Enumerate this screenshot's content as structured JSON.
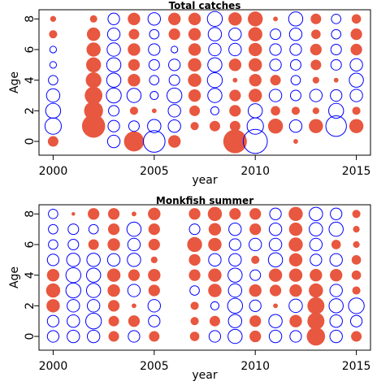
{
  "colors": {
    "positive": "#E8573F",
    "negative": "#0000FF",
    "axis": "#000000"
  },
  "chart_data": [
    {
      "type": "bubble",
      "title": "Total catches",
      "xlabel": "year",
      "ylabel": "Age",
      "xlim": [
        1999.3,
        2015.7
      ],
      "ylim": [
        -0.9,
        8.6
      ],
      "xticks": [
        2000,
        2005,
        2010,
        2015
      ],
      "yticks": [
        0,
        2,
        4,
        6,
        8
      ],
      "years": [
        2000,
        2001,
        2002,
        2003,
        2004,
        2005,
        2006,
        2007,
        2008,
        2009,
        2010,
        2011,
        2012,
        2013,
        2014,
        2015
      ],
      "ages": [
        0,
        1,
        2,
        3,
        4,
        5,
        6,
        7,
        8
      ],
      "residuals_by_age": [
        [
          0.25,
          0.0,
          0.0,
          -0.35,
          0.9,
          -1.05,
          0.35,
          0.0,
          0.0,
          1.25,
          -1.3,
          0.0,
          0.05,
          0.0,
          0.0,
          0.0
        ],
        [
          -0.6,
          0.0,
          1.2,
          -0.3,
          -0.25,
          -0.4,
          -0.35,
          0.15,
          0.25,
          0.25,
          -0.6,
          0.5,
          -0.35,
          0.45,
          -0.95,
          0.45
        ],
        [
          -0.5,
          0.0,
          0.8,
          -0.25,
          0.15,
          0.05,
          -0.35,
          0.25,
          -0.15,
          0.3,
          -0.45,
          0.2,
          0.15,
          0.1,
          -0.5,
          0.15
        ],
        [
          -0.4,
          0.0,
          0.7,
          -0.5,
          -0.45,
          -0.15,
          -0.5,
          0.35,
          -0.45,
          0.3,
          0.4,
          -0.35,
          -0.25,
          -0.35,
          -0.3,
          -0.35
        ],
        [
          -0.2,
          0.0,
          0.55,
          -0.45,
          0.35,
          -0.2,
          -0.25,
          0.4,
          -0.5,
          0.05,
          0.35,
          0.25,
          -0.2,
          0.1,
          0.05,
          -0.45
        ],
        [
          -0.1,
          0.0,
          0.5,
          -0.45,
          0.3,
          -0.25,
          -0.3,
          0.4,
          -0.45,
          0.35,
          0.4,
          -0.3,
          -0.25,
          0.25,
          -0.25,
          -0.35
        ],
        [
          -0.1,
          0.0,
          0.45,
          -0.4,
          0.35,
          -0.3,
          -0.1,
          0.35,
          -0.35,
          -0.35,
          0.4,
          -0.3,
          -0.3,
          0.3,
          -0.25,
          0.3
        ],
        [
          0.15,
          0.0,
          0.4,
          -0.35,
          0.25,
          -0.2,
          0.3,
          0.35,
          -0.4,
          -0.35,
          0.45,
          -0.25,
          -0.35,
          0.2,
          -0.2,
          0.3
        ],
        [
          0.08,
          0.0,
          0.12,
          -0.3,
          0.35,
          -0.35,
          0.35,
          0.35,
          -0.5,
          0.4,
          0.5,
          0.05,
          -0.45,
          0.25,
          -0.2,
          0.2
        ]
      ]
    },
    {
      "type": "bubble",
      "title": "Monkfish summer",
      "xlabel": "year",
      "ylabel": "Age",
      "xlim": [
        1999.3,
        2015.7
      ],
      "ylim": [
        -0.9,
        8.6
      ],
      "xticks": [
        2000,
        2005,
        2010,
        2015
      ],
      "yticks": [
        0,
        2,
        4,
        6,
        8
      ],
      "years": [
        2000,
        2001,
        2002,
        2003,
        2004,
        2005,
        2006,
        2007,
        2008,
        2009,
        2010,
        2011,
        2012,
        2013,
        2014,
        2015
      ],
      "ages": [
        0,
        1,
        2,
        3,
        4,
        5,
        6,
        7,
        8
      ],
      "residuals_by_age": [
        [
          -0.3,
          -0.35,
          -0.35,
          0.25,
          -0.3,
          0.25,
          0.0,
          0.2,
          -0.3,
          -0.45,
          0.3,
          -0.35,
          -0.3,
          0.75,
          -0.35,
          0.25
        ],
        [
          -0.3,
          -0.35,
          -0.55,
          0.25,
          0.3,
          -0.3,
          0.0,
          0.15,
          0.25,
          -0.4,
          0.3,
          -0.4,
          0.35,
          0.65,
          -0.35,
          -0.3
        ],
        [
          0.4,
          -0.35,
          -0.35,
          0.3,
          0.05,
          -0.35,
          0.0,
          0.15,
          -0.15,
          -0.5,
          -0.3,
          0.05,
          -0.4,
          0.65,
          -0.45,
          -0.55
        ],
        [
          0.45,
          -0.5,
          -0.45,
          0.35,
          -0.35,
          0.3,
          0.0,
          -0.2,
          0.4,
          -0.4,
          0.35,
          0.3,
          0.35,
          0.45,
          -0.35,
          0.15
        ],
        [
          0.35,
          -0.5,
          -0.45,
          0.4,
          0.3,
          0.35,
          0.0,
          0.3,
          0.4,
          -0.45,
          -0.25,
          0.4,
          0.4,
          0.35,
          0.35,
          0.2
        ],
        [
          -0.3,
          -0.4,
          -0.4,
          -0.35,
          -0.4,
          0.1,
          0.0,
          0.3,
          -0.35,
          -0.35,
          0.15,
          -0.45,
          0.4,
          -0.3,
          -0.35,
          0.2
        ],
        [
          -0.2,
          -0.25,
          0.25,
          0.35,
          -0.35,
          0.3,
          0.0,
          0.5,
          0.4,
          -0.3,
          -0.35,
          -0.35,
          0.45,
          -0.35,
          0.2,
          0.1
        ],
        [
          -0.2,
          -0.25,
          -0.2,
          0.3,
          -0.45,
          0.3,
          0.0,
          -0.25,
          0.35,
          -0.35,
          0.3,
          -0.35,
          0.4,
          -0.4,
          -0.45,
          0.1
        ],
        [
          -0.2,
          0.03,
          0.3,
          0.3,
          0.05,
          0.35,
          0.0,
          0.3,
          0.45,
          0.3,
          0.3,
          -0.3,
          0.45,
          -0.4,
          -0.3,
          0.15
        ]
      ]
    }
  ]
}
